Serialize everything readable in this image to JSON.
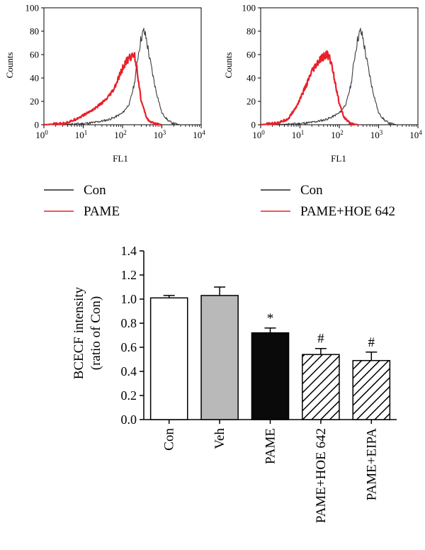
{
  "chart_data": [
    {
      "type": "line",
      "subtype": "histogram",
      "xlabel": "FL1",
      "ylabel": "Counts",
      "xscale": "log",
      "xlim": [
        1,
        10000
      ],
      "ylim": [
        0,
        100
      ],
      "xticks": [
        {
          "value": 1,
          "base": "10",
          "exp": "0"
        },
        {
          "value": 10,
          "base": "10",
          "exp": "1"
        },
        {
          "value": 100,
          "base": "10",
          "exp": "2"
        },
        {
          "value": 1000,
          "base": "10",
          "exp": "3"
        },
        {
          "value": 10000,
          "base": "10",
          "exp": "4"
        }
      ],
      "yticks": [
        "0",
        "20",
        "40",
        "60",
        "80",
        "100"
      ],
      "legend": {
        "placement": "bottom",
        "entries": [
          {
            "label": "Con",
            "color": "#222222"
          },
          {
            "label": "PAME",
            "color": "#e8202a"
          }
        ]
      },
      "series": [
        {
          "name": "Con",
          "color": "#3a3a3a",
          "x": [
            1,
            5,
            10,
            20,
            40,
            60,
            100,
            150,
            200,
            250,
            300,
            350,
            400,
            500,
            700,
            1000,
            1500,
            2000,
            3000
          ],
          "y": [
            0,
            0.5,
            1,
            2,
            4,
            6,
            10,
            18,
            35,
            60,
            75,
            80,
            74,
            55,
            30,
            10,
            3,
            1,
            0
          ]
        },
        {
          "name": "PAME",
          "color": "#e8202a",
          "x": [
            1,
            3,
            5,
            10,
            20,
            40,
            60,
            80,
            100,
            130,
            160,
            200,
            230,
            260,
            300,
            400,
            500,
            700,
            1000
          ],
          "y": [
            0,
            1,
            3,
            8,
            14,
            22,
            30,
            40,
            48,
            55,
            58,
            60,
            50,
            35,
            20,
            7,
            2,
            1,
            0
          ]
        }
      ]
    },
    {
      "type": "line",
      "subtype": "histogram",
      "xlabel": "FL1",
      "ylabel": "Counts",
      "xscale": "log",
      "xlim": [
        1,
        10000
      ],
      "ylim": [
        0,
        100
      ],
      "xticks": [
        {
          "value": 1,
          "base": "10",
          "exp": "0"
        },
        {
          "value": 10,
          "base": "10",
          "exp": "1"
        },
        {
          "value": 100,
          "base": "10",
          "exp": "2"
        },
        {
          "value": 1000,
          "base": "10",
          "exp": "3"
        },
        {
          "value": 10000,
          "base": "10",
          "exp": "4"
        }
      ],
      "yticks": [
        "0",
        "20",
        "40",
        "60",
        "80",
        "100"
      ],
      "legend": {
        "placement": "bottom",
        "entries": [
          {
            "label": "Con",
            "color": "#222222"
          },
          {
            "label": "PAME+HOE 642",
            "color": "#e8202a"
          }
        ]
      },
      "series": [
        {
          "name": "Con",
          "color": "#3a3a3a",
          "x": [
            1,
            5,
            10,
            20,
            40,
            60,
            100,
            150,
            200,
            250,
            300,
            350,
            400,
            500,
            700,
            1000,
            1500,
            2000,
            3000
          ],
          "y": [
            0,
            0.5,
            1,
            2,
            4,
            6,
            10,
            18,
            35,
            60,
            75,
            80,
            74,
            55,
            30,
            10,
            3,
            1,
            0
          ]
        },
        {
          "name": "PAME+HOE 642",
          "color": "#e8202a",
          "x": [
            1,
            2,
            3,
            5,
            8,
            10,
            15,
            20,
            30,
            40,
            50,
            60,
            70,
            80,
            100,
            130,
            160,
            200,
            300
          ],
          "y": [
            0,
            1,
            2,
            5,
            15,
            22,
            35,
            45,
            54,
            58,
            60,
            55,
            45,
            35,
            18,
            7,
            3,
            1,
            0
          ]
        }
      ]
    },
    {
      "type": "bar",
      "categories": [
        "Con",
        "Veh",
        "PAME",
        "PAME+HOE 642",
        "PAME+EIPA"
      ],
      "values": [
        1.01,
        1.03,
        0.72,
        0.54,
        0.49
      ],
      "errors": [
        0.02,
        0.07,
        0.04,
        0.05,
        0.07
      ],
      "fills": [
        "white",
        "gray",
        "black",
        "hatched",
        "hatched"
      ],
      "annotations": [
        "",
        "",
        "*",
        "#",
        "#"
      ],
      "ylabel": [
        "BCECF intensity",
        "(ratio of Con)"
      ],
      "ylim": [
        0,
        1.4
      ],
      "yticks": [
        "0.0",
        "0.2",
        "0.4",
        "0.6",
        "0.8",
        "1.0",
        "1.2",
        "1.4"
      ],
      "grid": false
    }
  ]
}
